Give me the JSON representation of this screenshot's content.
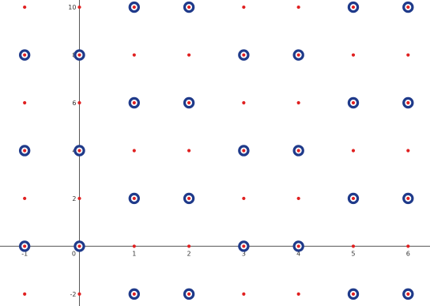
{
  "chart_data": {
    "type": "scatter",
    "title": "",
    "xlabel": "",
    "ylabel": "",
    "xlim": [
      -1.45,
      6.4
    ],
    "ylim": [
      -2.5,
      10.3
    ],
    "grid": false,
    "legend": "none",
    "x_ticks": [
      {
        "value": -1,
        "label": "-1"
      },
      {
        "value": 0,
        "label": "0"
      },
      {
        "value": 1,
        "label": "1"
      },
      {
        "value": 2,
        "label": "2"
      },
      {
        "value": 3,
        "label": "3"
      },
      {
        "value": 4,
        "label": "4"
      },
      {
        "value": 5,
        "label": "5"
      },
      {
        "value": 6,
        "label": "6"
      }
    ],
    "y_ticks": [
      {
        "value": -2,
        "label": "-2"
      },
      {
        "value": 2,
        "label": "2"
      },
      {
        "value": 4,
        "label": "4"
      },
      {
        "value": 6,
        "label": "6"
      },
      {
        "value": 8,
        "label": "8"
      },
      {
        "value": 10,
        "label": "10"
      }
    ],
    "dot_color": "#e02020",
    "ring_color": "#1f3a8a",
    "points": [
      {
        "x": -1,
        "y": 10,
        "ring": false
      },
      {
        "x": 0,
        "y": 10,
        "ring": false
      },
      {
        "x": 1,
        "y": 10,
        "ring": true
      },
      {
        "x": 2,
        "y": 10,
        "ring": true
      },
      {
        "x": 3,
        "y": 10,
        "ring": false
      },
      {
        "x": 4,
        "y": 10,
        "ring": false
      },
      {
        "x": 5,
        "y": 10,
        "ring": true
      },
      {
        "x": 6,
        "y": 10,
        "ring": true
      },
      {
        "x": -1,
        "y": 8,
        "ring": true
      },
      {
        "x": 0,
        "y": 8,
        "ring": true
      },
      {
        "x": 1,
        "y": 8,
        "ring": false
      },
      {
        "x": 2,
        "y": 8,
        "ring": false
      },
      {
        "x": 3,
        "y": 8,
        "ring": true
      },
      {
        "x": 4,
        "y": 8,
        "ring": true
      },
      {
        "x": 5,
        "y": 8,
        "ring": false
      },
      {
        "x": 6,
        "y": 8,
        "ring": false
      },
      {
        "x": -1,
        "y": 6,
        "ring": false
      },
      {
        "x": 0,
        "y": 6,
        "ring": false
      },
      {
        "x": 1,
        "y": 6,
        "ring": true
      },
      {
        "x": 2,
        "y": 6,
        "ring": true
      },
      {
        "x": 3,
        "y": 6,
        "ring": false
      },
      {
        "x": 4,
        "y": 6,
        "ring": false
      },
      {
        "x": 5,
        "y": 6,
        "ring": true
      },
      {
        "x": 6,
        "y": 6,
        "ring": true
      },
      {
        "x": -1,
        "y": 4,
        "ring": true
      },
      {
        "x": 0,
        "y": 4,
        "ring": true
      },
      {
        "x": 1,
        "y": 4,
        "ring": false
      },
      {
        "x": 2,
        "y": 4,
        "ring": false
      },
      {
        "x": 3,
        "y": 4,
        "ring": true
      },
      {
        "x": 4,
        "y": 4,
        "ring": true
      },
      {
        "x": 5,
        "y": 4,
        "ring": false
      },
      {
        "x": 6,
        "y": 4,
        "ring": false
      },
      {
        "x": -1,
        "y": 2,
        "ring": false
      },
      {
        "x": 0,
        "y": 2,
        "ring": false
      },
      {
        "x": 1,
        "y": 2,
        "ring": true
      },
      {
        "x": 2,
        "y": 2,
        "ring": true
      },
      {
        "x": 3,
        "y": 2,
        "ring": false
      },
      {
        "x": 4,
        "y": 2,
        "ring": false
      },
      {
        "x": 5,
        "y": 2,
        "ring": true
      },
      {
        "x": 6,
        "y": 2,
        "ring": true
      },
      {
        "x": -1,
        "y": 0,
        "ring": true
      },
      {
        "x": 0,
        "y": 0,
        "ring": true
      },
      {
        "x": 1,
        "y": 0,
        "ring": false
      },
      {
        "x": 2,
        "y": 0,
        "ring": false
      },
      {
        "x": 3,
        "y": 0,
        "ring": true
      },
      {
        "x": 4,
        "y": 0,
        "ring": true
      },
      {
        "x": 5,
        "y": 0,
        "ring": false
      },
      {
        "x": 6,
        "y": 0,
        "ring": false
      },
      {
        "x": -1,
        "y": -2,
        "ring": false
      },
      {
        "x": 0,
        "y": -2,
        "ring": false
      },
      {
        "x": 1,
        "y": -2,
        "ring": true
      },
      {
        "x": 2,
        "y": -2,
        "ring": true
      },
      {
        "x": 3,
        "y": -2,
        "ring": false
      },
      {
        "x": 4,
        "y": -2,
        "ring": false
      },
      {
        "x": 5,
        "y": -2,
        "ring": true
      },
      {
        "x": 6,
        "y": -2,
        "ring": true
      }
    ]
  }
}
